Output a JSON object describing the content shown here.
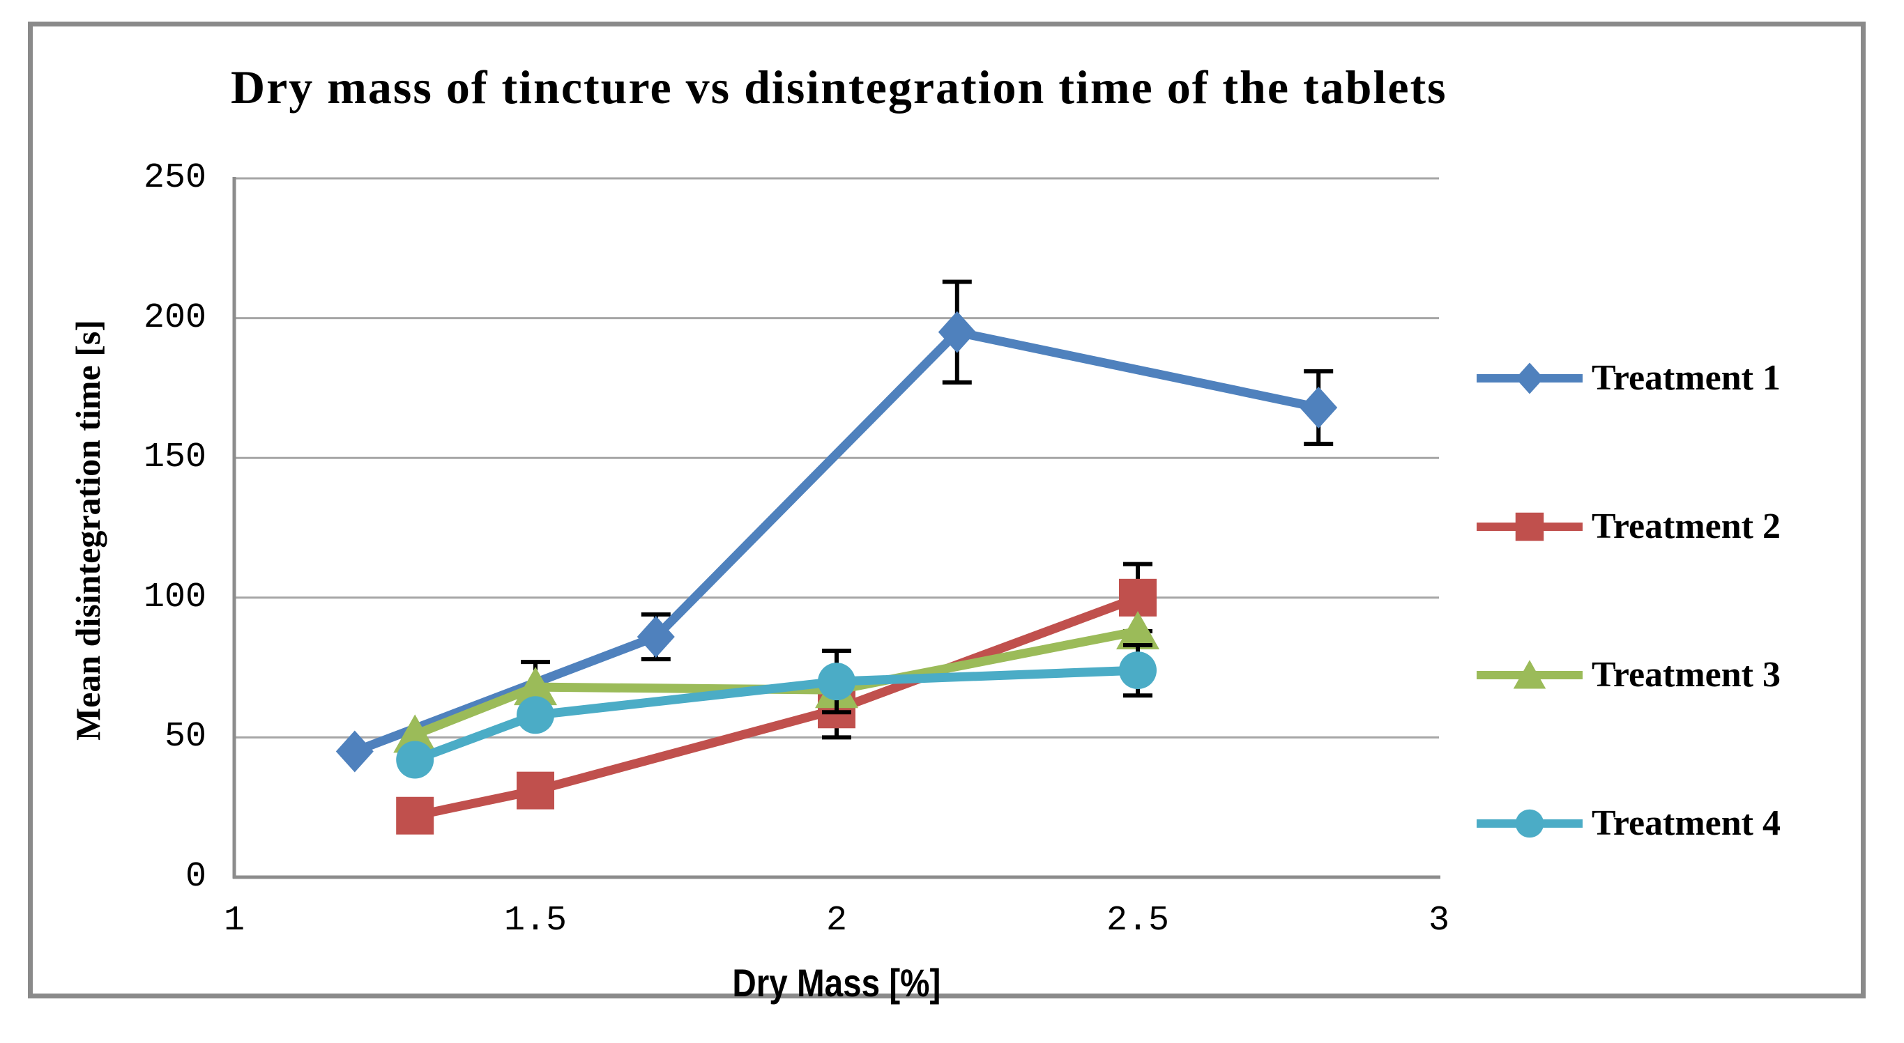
{
  "chart_data": {
    "type": "line",
    "title": "Dry mass of tincture vs disintegration time of the tablets",
    "xlabel": "Dry Mass [%]",
    "ylabel": "Mean disintegration time [s]",
    "xlim": [
      1,
      3
    ],
    "ylim": [
      0,
      250
    ],
    "x_ticks": [
      1,
      1.5,
      2,
      2.5,
      3
    ],
    "x_tick_labels": [
      "1",
      "1.5",
      "2",
      "2.5",
      "3"
    ],
    "y_ticks": [
      0,
      50,
      100,
      150,
      200,
      250
    ],
    "y_tick_labels": [
      "0",
      "50",
      "100",
      "150",
      "200",
      "250"
    ],
    "grid": "horizontal-gridlines-on",
    "legend_position": "right",
    "has_error_bars": true,
    "series": [
      {
        "name": "Treatment 1",
        "color": "#4F81BD",
        "marker": "diamond",
        "x": [
          1.2,
          1.7,
          2.2,
          2.8
        ],
        "y": [
          45,
          86,
          195,
          168
        ],
        "yerr": [
          0,
          8,
          18,
          13
        ]
      },
      {
        "name": "Treatment 2",
        "color": "#C0504D",
        "marker": "square",
        "x": [
          1.3,
          1.5,
          2.0,
          2.5
        ],
        "y": [
          22,
          31,
          60,
          100
        ],
        "yerr": [
          0,
          0,
          10,
          12
        ]
      },
      {
        "name": "Treatment 3",
        "color": "#9BBB59",
        "marker": "triangle",
        "x": [
          1.3,
          1.5,
          2.0,
          2.5
        ],
        "y": [
          51,
          68,
          67,
          88
        ],
        "yerr": [
          0,
          9,
          0,
          0
        ]
      },
      {
        "name": "Treatment 4",
        "color": "#4BACC6",
        "marker": "circle",
        "x": [
          1.3,
          1.5,
          2.0,
          2.5
        ],
        "y": [
          42,
          58,
          70,
          74
        ],
        "yerr": [
          0,
          0,
          11,
          9
        ]
      }
    ],
    "colors": {
      "gridline": "#A6A6A6",
      "axis_line": "#8C8C8C",
      "frame_border": "#8A8A8A",
      "error_bar": "#000000",
      "background": "#FFFFFF",
      "text": "#000000"
    }
  }
}
